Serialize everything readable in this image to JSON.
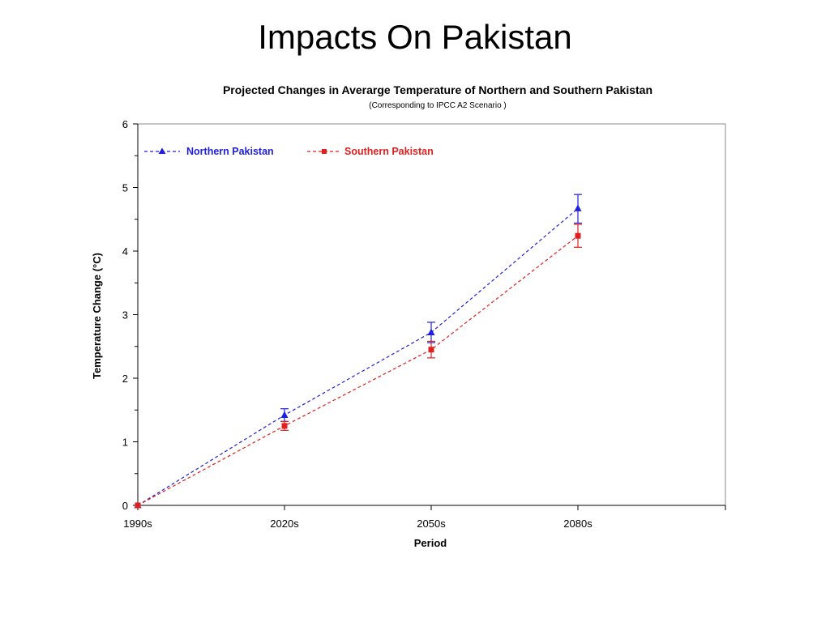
{
  "slide": {
    "title": "Impacts On Pakistan"
  },
  "chart_data": {
    "type": "line",
    "title": "Projected Changes in Averarge Temperature of Northern and Southern Pakistan",
    "subtitle": "(Corresponding to IPCC A2 Scenario )",
    "xlabel": "Period",
    "ylabel": "Temperature Change (°C)",
    "categories": [
      "1990s",
      "2020s",
      "2050s",
      "2080s"
    ],
    "ylim": [
      0,
      6
    ],
    "yticks": [
      "0",
      "1",
      "2",
      "3",
      "4",
      "5",
      "6"
    ],
    "grid": false,
    "legend_position": "top-left",
    "series": [
      {
        "name": "Northern Pakistan",
        "color": "#1f1fe0",
        "marker": "triangle",
        "values": [
          0,
          1.42,
          2.72,
          4.67
        ],
        "error_low": [
          0,
          1.32,
          2.56,
          4.44
        ],
        "error_high": [
          0,
          1.52,
          2.88,
          4.89
        ]
      },
      {
        "name": "Southern Pakistan",
        "color": "#e01f1f",
        "marker": "square",
        "values": [
          0,
          1.25,
          2.45,
          4.24
        ],
        "error_low": [
          0,
          1.18,
          2.32,
          4.06
        ],
        "error_high": [
          0,
          1.32,
          2.58,
          4.42
        ]
      }
    ]
  }
}
